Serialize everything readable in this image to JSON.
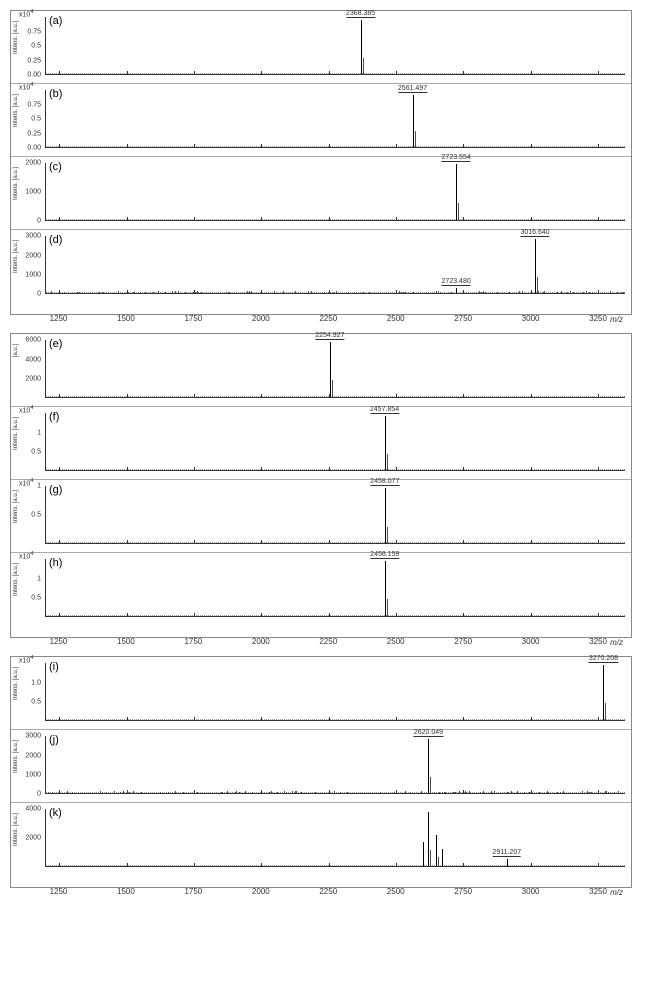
{
  "xaxis": {
    "min": 1200,
    "max": 3350,
    "ticks": [
      1250,
      1500,
      1750,
      2000,
      2250,
      2500,
      2750,
      3000,
      3250
    ],
    "label": "m/z"
  },
  "groups": [
    {
      "panels": [
        {
          "tag": "(a)",
          "ylabel": "Intens. [a.u.]",
          "ymult": "x10",
          "sup": "4",
          "yticks": [
            {
              "v": 0,
              "l": "0.00"
            },
            {
              "v": 0.25,
              "l": "0.25"
            },
            {
              "v": 0.5,
              "l": "0.5"
            },
            {
              "v": 0.75,
              "l": "0.75"
            }
          ],
          "ylabel_mode": "rot",
          "peaks": [
            {
              "x": 2368,
              "h": 0.95,
              "label": "2368.385"
            }
          ],
          "noise_dense": false
        },
        {
          "tag": "(b)",
          "ylabel": "Intens. [a.u.]",
          "ymult": "x10",
          "sup": "4",
          "yticks": [
            {
              "v": 0,
              "l": "0.00"
            },
            {
              "v": 0.25,
              "l": "0.25"
            },
            {
              "v": 0.5,
              "l": "0.5"
            },
            {
              "v": 0.75,
              "l": "0.75"
            }
          ],
          "ylabel_mode": "rot",
          "peaks": [
            {
              "x": 2561,
              "h": 0.92,
              "label": "2561.497"
            }
          ],
          "noise_dense": false
        },
        {
          "tag": "(c)",
          "ylabel": "Intens. [a.u.]",
          "ymult": "",
          "sup": "",
          "yticks": [
            {
              "v": 0,
              "l": "0"
            },
            {
              "v": 0.5,
              "l": "1000"
            },
            {
              "v": 1,
              "l": "2000"
            }
          ],
          "ylabel_mode": "rot",
          "peaks": [
            {
              "x": 2723,
              "h": 0.98,
              "label": "2723.554"
            }
          ],
          "noise_dense": false
        },
        {
          "tag": "(d)",
          "ylabel": "Intens. [a.u.]",
          "ymult": "",
          "sup": "",
          "yticks": [
            {
              "v": 0,
              "l": "0"
            },
            {
              "v": 0.33,
              "l": "1000"
            },
            {
              "v": 0.66,
              "l": "2000"
            },
            {
              "v": 1,
              "l": "3000"
            }
          ],
          "ylabel_mode": "rot",
          "peaks": [
            {
              "x": 2723,
              "h": 0.09,
              "label": "2723.480"
            },
            {
              "x": 3016,
              "h": 0.95,
              "label": "3016.640"
            }
          ],
          "noise_dense": true
        }
      ],
      "show_xaxis": true
    },
    {
      "panels": [
        {
          "tag": "(e)",
          "ylabel": "[a.u.]",
          "ymult": "",
          "sup": "",
          "yticks": [
            {
              "v": 0,
              "l": ""
            },
            {
              "v": 0.33,
              "l": "2000"
            },
            {
              "v": 0.66,
              "l": "4000"
            },
            {
              "v": 1,
              "l": "6000"
            }
          ],
          "ylabel_mode": "rot",
          "peaks": [
            {
              "x": 2254,
              "h": 0.97,
              "label": "2254.927"
            }
          ],
          "noise_dense": false
        },
        {
          "tag": "(f)",
          "ylabel": "Intens. [a.u.]",
          "ymult": "x10",
          "sup": "4",
          "yticks": [
            {
              "v": 0,
              "l": ""
            },
            {
              "v": 0.33,
              "l": "0.5"
            },
            {
              "v": 0.66,
              "l": "1"
            }
          ],
          "ylabel_mode": "rot",
          "peaks": [
            {
              "x": 2457,
              "h": 0.95,
              "label": "2457.854"
            }
          ],
          "noise_dense": false
        },
        {
          "tag": "(g)",
          "ylabel": "Intens. [a.u.]",
          "ymult": "x10",
          "sup": "4",
          "yticks": [
            {
              "v": 0,
              "l": ""
            },
            {
              "v": 0.5,
              "l": "0.5"
            },
            {
              "v": 1,
              "l": "1"
            }
          ],
          "ylabel_mode": "rot",
          "peaks": [
            {
              "x": 2458,
              "h": 0.96,
              "label": "2458.077"
            }
          ],
          "noise_dense": false
        },
        {
          "tag": "(h)",
          "ylabel": "Intens. [a.u.]",
          "ymult": "x10",
          "sup": "4",
          "yticks": [
            {
              "v": 0,
              "l": ""
            },
            {
              "v": 0.33,
              "l": "0.5"
            },
            {
              "v": 0.66,
              "l": "1"
            }
          ],
          "ylabel_mode": "rot",
          "peaks": [
            {
              "x": 2458,
              "h": 0.97,
              "label": "2458.159"
            }
          ],
          "noise_dense": false
        }
      ],
      "show_xaxis": true
    },
    {
      "panels": [
        {
          "tag": "(i)",
          "ylabel": "Intens. [a.u.]",
          "ymult": "x10",
          "sup": "4",
          "yticks": [
            {
              "v": 0,
              "l": ""
            },
            {
              "v": 0.33,
              "l": "0.5"
            },
            {
              "v": 0.66,
              "l": "1.0"
            }
          ],
          "ylabel_mode": "rot",
          "peaks": [
            {
              "x": 3270,
              "h": 0.97,
              "label": "3270.208"
            }
          ],
          "noise_dense": false
        },
        {
          "tag": "(j)",
          "ylabel": "Intens. [a.u.]",
          "ymult": "",
          "sup": "",
          "yticks": [
            {
              "v": 0,
              "l": "0"
            },
            {
              "v": 0.33,
              "l": "1000"
            },
            {
              "v": 0.66,
              "l": "2000"
            },
            {
              "v": 1,
              "l": "3000"
            }
          ],
          "ylabel_mode": "rot",
          "peaks": [
            {
              "x": 2620,
              "h": 0.95,
              "label": "2620.049"
            }
          ],
          "noise_dense": true
        },
        {
          "tag": "(k)",
          "ylabel": "Intens. [a.u.]",
          "ymult": "",
          "sup": "",
          "yticks": [
            {
              "v": 0,
              "l": ""
            },
            {
              "v": 0.5,
              "l": "2000"
            },
            {
              "v": 1,
              "l": "4000"
            }
          ],
          "ylabel_mode": "rot",
          "peaks": [
            {
              "x": 2600,
              "h": 0.42,
              "label": ""
            },
            {
              "x": 2620,
              "h": 0.95,
              "label": ""
            },
            {
              "x": 2650,
              "h": 0.55,
              "label": ""
            },
            {
              "x": 2670,
              "h": 0.3,
              "label": ""
            },
            {
              "x": 2911,
              "h": 0.12,
              "label": "2911.207"
            }
          ],
          "noise_dense": false
        }
      ],
      "show_xaxis": true
    }
  ],
  "colors": {
    "peak": "#000000",
    "axis": "#333333",
    "bg": "#ffffff",
    "border": "#888888",
    "dotted": "#999999"
  }
}
